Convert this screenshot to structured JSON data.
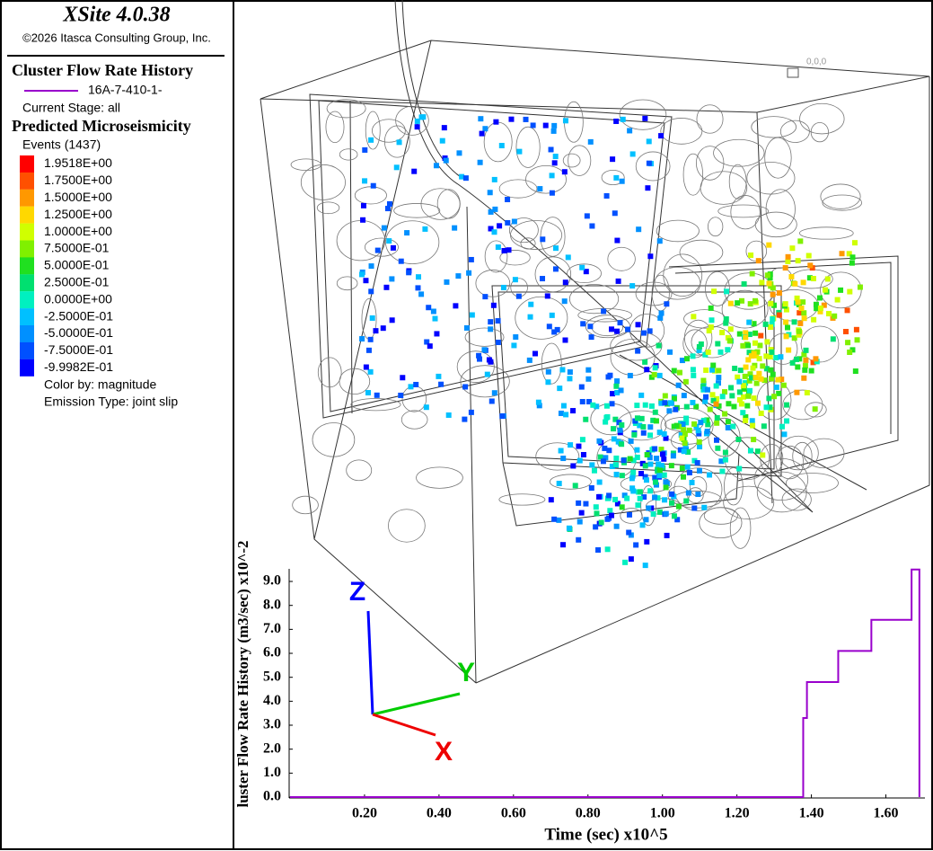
{
  "header": {
    "title": "XSite 4.0.38",
    "copyright": "©2026 Itasca Consulting Group, Inc."
  },
  "panel": {
    "history_title": "Cluster Flow Rate History",
    "stage": "Current Stage: all",
    "micro_title": "Predicted Microseismicity",
    "events": "Events (1437)",
    "colorbar": [
      {
        "label": "1.9518E+00",
        "color": "#ff0000"
      },
      {
        "label": "1.7500E+00",
        "color": "#ff5000"
      },
      {
        "label": "1.5000E+00",
        "color": "#ff9800"
      },
      {
        "label": "1.2500E+00",
        "color": "#ffd800"
      },
      {
        "label": "1.0000E+00",
        "color": "#d0ff00"
      },
      {
        "label": "7.5000E-01",
        "color": "#80f000"
      },
      {
        "label": "5.0000E-01",
        "color": "#20e020"
      },
      {
        "label": "2.5000E-01",
        "color": "#00e070"
      },
      {
        "label": "0.0000E+00",
        "color": "#00f0c0"
      },
      {
        "label": "-2.5000E-01",
        "color": "#00c0ff"
      },
      {
        "label": "-5.0000E-01",
        "color": "#0090ff"
      },
      {
        "label": "-7.5000E-01",
        "color": "#0050ff"
      },
      {
        "label": "-9.9982E-01",
        "color": "#0000ff"
      }
    ],
    "color_by": "Color by: magnitude",
    "emission": "Emission Type: joint slip"
  },
  "view": {
    "origin_label": "0,0,0",
    "axis_x": "X",
    "axis_y": "Y",
    "axis_z": "Z"
  },
  "chart_data": {
    "type": "line",
    "x_label": "Time (sec) x10^5",
    "y_label": "luster Flow Rate History (m3/sec) x10^-2",
    "x": [
      0,
      1.378,
      1.378,
      1.388,
      1.388,
      1.472,
      1.472,
      1.561,
      1.561,
      1.669,
      1.669,
      1.69,
      1.69
    ],
    "series": [
      {
        "name": "16A-7-410-1-",
        "color": "#9900cc",
        "values": [
          0,
          0,
          3.3,
          3.3,
          4.8,
          4.8,
          6.1,
          6.1,
          7.4,
          7.4,
          9.5,
          9.5,
          0
        ]
      }
    ],
    "xlim": [
      0,
      1.7
    ],
    "xticks": [
      {
        "value": 0.2,
        "label": "0.20"
      },
      {
        "value": 0.4,
        "label": "0.40"
      },
      {
        "value": 0.6,
        "label": "0.60"
      },
      {
        "value": 0.8,
        "label": "0.80"
      },
      {
        "value": 1.0,
        "label": "1.00"
      },
      {
        "value": 1.2,
        "label": "1.20"
      },
      {
        "value": 1.4,
        "label": "1.40"
      },
      {
        "value": 1.6,
        "label": "1.60"
      }
    ],
    "ylim": [
      0,
      9.5
    ],
    "yticks": [
      {
        "value": 0,
        "label": "0.0"
      },
      {
        "value": 1,
        "label": "1.0"
      },
      {
        "value": 2,
        "label": "2.0"
      },
      {
        "value": 3,
        "label": "3.0"
      },
      {
        "value": 4,
        "label": "4.0"
      },
      {
        "value": 5,
        "label": "5.0"
      },
      {
        "value": 6,
        "label": "6.0"
      },
      {
        "value": 7,
        "label": "7.0"
      },
      {
        "value": 8,
        "label": "8.0"
      },
      {
        "value": 9,
        "label": "9.0"
      }
    ]
  }
}
